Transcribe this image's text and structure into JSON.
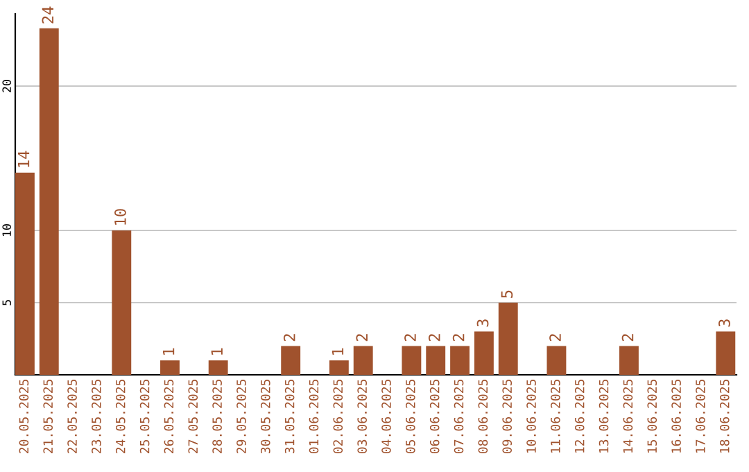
{
  "chart_data": {
    "type": "bar",
    "categories": [
      "20.05.2025",
      "21.05.2025",
      "22.05.2025",
      "23.05.2025",
      "24.05.2025",
      "25.05.2025",
      "26.05.2025",
      "27.05.2025",
      "28.05.2025",
      "29.05.2025",
      "30.05.2025",
      "31.05.2025",
      "01.06.2025",
      "02.06.2025",
      "03.06.2025",
      "04.06.2025",
      "05.06.2025",
      "06.06.2025",
      "07.06.2025",
      "08.06.2025",
      "09.06.2025",
      "10.06.2025",
      "11.06.2025",
      "12.06.2025",
      "13.06.2025",
      "14.06.2025",
      "15.06.2025",
      "16.06.2025",
      "17.06.2025",
      "18.06.2025"
    ],
    "values": [
      14,
      24,
      0,
      0,
      10,
      0,
      1,
      0,
      1,
      0,
      0,
      2,
      0,
      1,
      2,
      0,
      2,
      2,
      2,
      3,
      5,
      0,
      2,
      0,
      0,
      2,
      0,
      0,
      0,
      3
    ],
    "value_labels": [
      "14",
      "24",
      null,
      null,
      "10",
      null,
      "1",
      null,
      "1",
      null,
      null,
      "2",
      null,
      "1",
      "2",
      null,
      "2",
      "2",
      "2",
      "3",
      "5",
      null,
      "2",
      null,
      null,
      "2",
      null,
      null,
      null,
      "3"
    ],
    "color": "#a0522d",
    "ylim": [
      0,
      25
    ],
    "yticks": [
      5,
      10,
      20
    ],
    "grid": "y"
  }
}
